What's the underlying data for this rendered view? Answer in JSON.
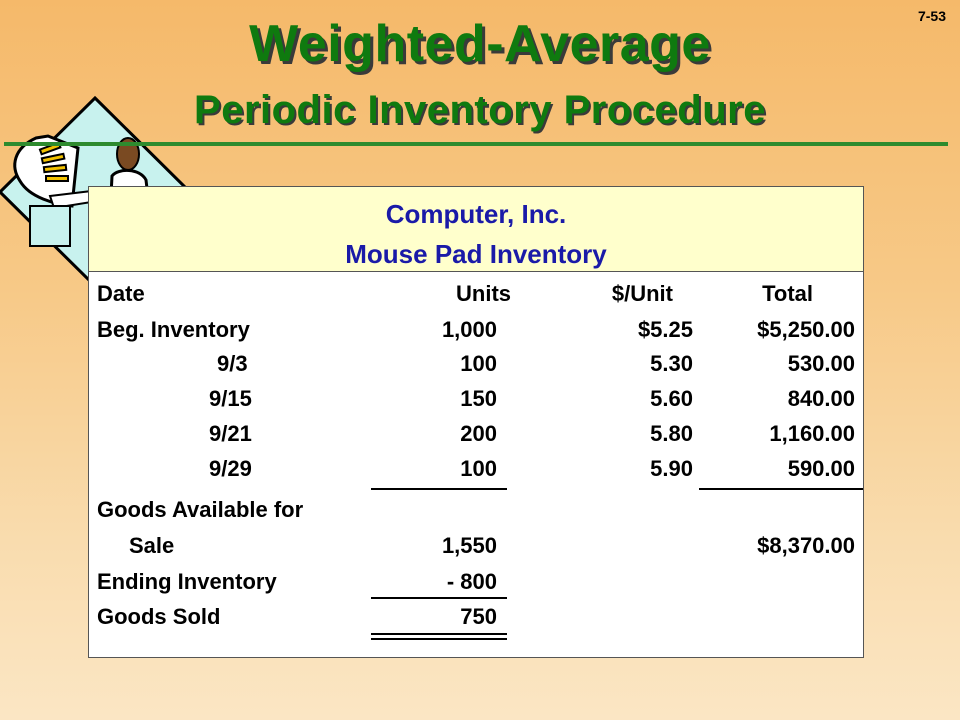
{
  "slide_number": "7-53",
  "title_line1": "Weighted-Average",
  "title_line2": "Periodic Inventory Procedure",
  "panel": {
    "company": "Computer, Inc.",
    "report": "Mouse Pad Inventory"
  },
  "table": {
    "headers": {
      "date": "Date",
      "units": "Units",
      "unit_cost": "$/Unit",
      "total": "Total"
    },
    "rows": [
      {
        "label": "Beg. Inventory",
        "units": "1,000",
        "unit_cost": "$5.25",
        "total": "$5,250.00"
      },
      {
        "label": "9/3",
        "units": "100",
        "unit_cost": "5.30",
        "total": "530.00"
      },
      {
        "label": "9/15",
        "units": "150",
        "unit_cost": "5.60",
        "total": "840.00"
      },
      {
        "label": "9/21",
        "units": "200",
        "unit_cost": "5.80",
        "total": "1,160.00"
      },
      {
        "label": "9/29",
        "units": "100",
        "unit_cost": "5.90",
        "total": "590.00"
      }
    ],
    "goods_available_label_1": "Goods Available for",
    "goods_available_label_2": "Sale",
    "goods_available_units": "1,550",
    "goods_available_total": "$8,370.00",
    "ending_inventory_label": "Ending Inventory",
    "ending_inventory_units": "- 800",
    "goods_sold_label": "Goods Sold",
    "goods_sold_units": "750"
  },
  "colors": {
    "title_green": "#0f7a0f",
    "panel_header_bg": "#ffffcc",
    "header_text_blue": "#1a1aa8"
  },
  "clipart_icon": "person-at-computer-icon"
}
